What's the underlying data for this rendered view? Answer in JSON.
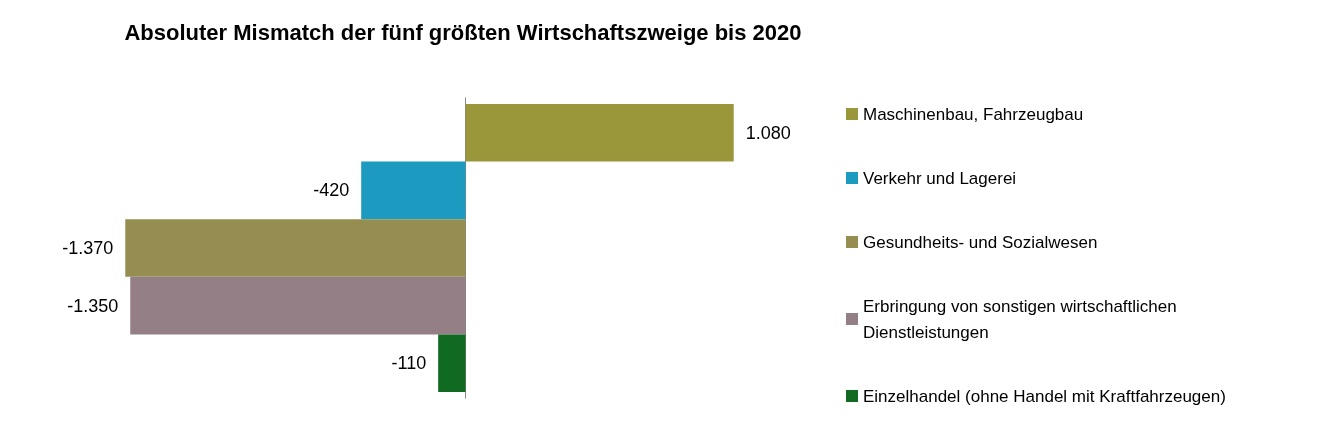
{
  "chart_data": {
    "type": "bar",
    "orientation": "horizontal",
    "title": "Absoluter Mismatch der fünf größten Wirtschaftszweige bis 2020",
    "categories": [
      null
    ],
    "legend": "right",
    "grid": false,
    "series": [
      {
        "name": "Maschinenbau, Fahrzeugbau",
        "color": "#9a973a",
        "values": [
          1080
        ],
        "value_labels": [
          "1.080"
        ]
      },
      {
        "name": "Verkehr und Lagerei",
        "color": "#1d9ac0",
        "values": [
          -420
        ],
        "value_labels": [
          "-420"
        ]
      },
      {
        "name": "Gesundheits- und Sozialwesen",
        "color": "#968e50",
        "values": [
          -1370
        ],
        "value_labels": [
          "-1.370"
        ]
      },
      {
        "name": "Erbringung von sonstigen wirtschaftlichen Dienstleistungen",
        "color": "#947f87",
        "values": [
          -1350
        ],
        "value_labels": [
          "-1.350"
        ]
      },
      {
        "name": "Einzelhandel (ohne Handel mit Kraftfahrzeugen)",
        "color": "#116a22",
        "values": [
          -110
        ],
        "value_labels": [
          "-110"
        ]
      }
    ]
  }
}
